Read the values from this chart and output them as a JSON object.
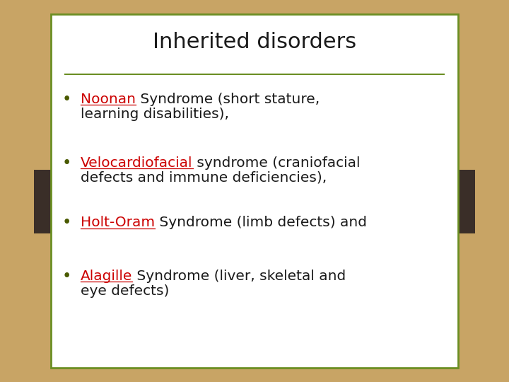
{
  "title": "Inherited disorders",
  "title_fontsize": 22,
  "title_color": "#1a1a1a",
  "background_outer": "#C8A465",
  "background_inner": "#FFFFFF",
  "border_color": "#6B8E23",
  "border_linewidth": 2.0,
  "sidebar_color": "#3a2e28",
  "divider_color": "#6B8E23",
  "red_color": "#CC0000",
  "dark_color": "#1a1a1a",
  "bullet_items": [
    {
      "keyword": "Noonan",
      "line1_rest": " Syndrome (short stature,",
      "line2": "learning disabilities),"
    },
    {
      "keyword": "Velocardiofacial",
      "line1_rest": " syndrome (craniofacial",
      "line2": "defects and immune deficiencies),"
    },
    {
      "keyword": "Holt-Oram",
      "line1_rest": " Syndrome (limb defects) and",
      "line2": ""
    },
    {
      "keyword": "Alagille",
      "line1_rest": " Syndrome (liver, skeletal and",
      "line2": "eye defects)"
    }
  ],
  "bullet_fontsize": 14.5,
  "figwidth": 7.2,
  "figheight": 5.4,
  "dpi": 100
}
